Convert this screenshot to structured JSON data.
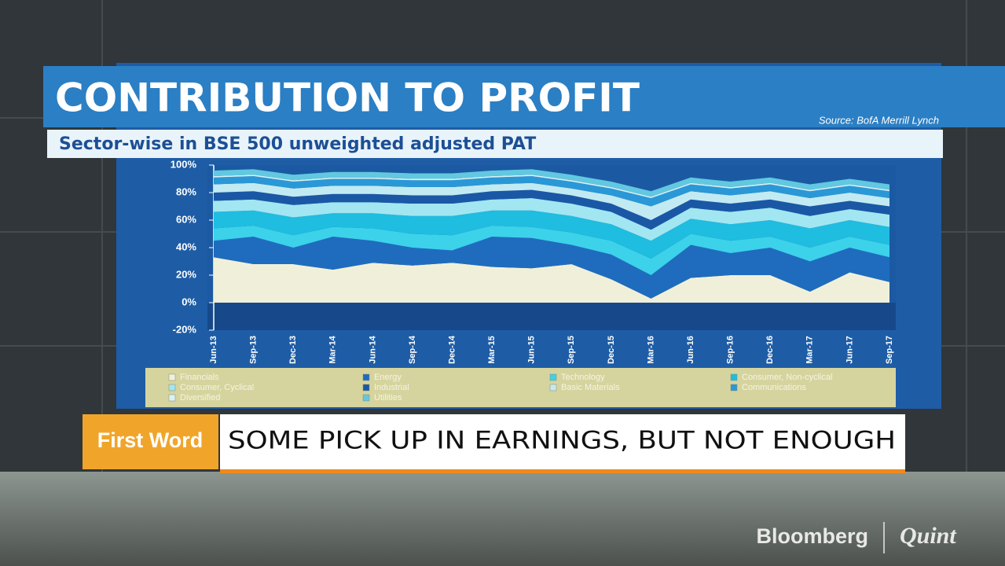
{
  "chart_data": {
    "type": "area",
    "stacked": true,
    "title": "CONTRIBUTION TO PROFIT",
    "subtitle": "Sector-wise in BSE 500 unweighted adjusted PAT",
    "source": "Source: BofA Merrill Lynch",
    "categories": [
      "Jun-13",
      "Sep-13",
      "Dec-13",
      "Mar-14",
      "Jun-14",
      "Sep-14",
      "Dec-14",
      "Mar-15",
      "Jun-15",
      "Sep-15",
      "Dec-15",
      "Mar-16",
      "Jun-16",
      "Sep-16",
      "Dec-16",
      "Mar-17",
      "Jun-17",
      "Sep-17"
    ],
    "series": [
      {
        "name": "Financials",
        "color": "#f0f0da",
        "values": [
          33,
          28,
          28,
          24,
          29,
          27,
          29,
          26,
          25,
          28,
          17,
          3,
          18,
          20,
          20,
          8,
          22,
          15
        ]
      },
      {
        "name": "Energy",
        "color": "#1f6cbf",
        "values": [
          12,
          20,
          12,
          24,
          16,
          13,
          9,
          22,
          22,
          14,
          18,
          17,
          24,
          16,
          20,
          22,
          18,
          18
        ]
      },
      {
        "name": "Technology",
        "color": "#3cd2ea",
        "values": [
          9,
          8,
          9,
          7,
          9,
          10,
          11,
          8,
          8,
          9,
          10,
          12,
          8,
          9,
          8,
          10,
          8,
          9
        ]
      },
      {
        "name": "Consumer, Non-cyclical",
        "color": "#1fbde0",
        "values": [
          12,
          11,
          13,
          10,
          11,
          13,
          14,
          11,
          12,
          12,
          12,
          13,
          11,
          12,
          12,
          14,
          12,
          13
        ]
      },
      {
        "name": "Consumer, Cyclical",
        "color": "#a2e6f2",
        "values": [
          8,
          8,
          9,
          8,
          8,
          9,
          9,
          8,
          9,
          9,
          9,
          8,
          8,
          9,
          9,
          9,
          8,
          9
        ]
      },
      {
        "name": "Industrial",
        "color": "#1a58a6",
        "values": [
          6,
          6,
          6,
          6,
          6,
          6,
          6,
          6,
          6,
          6,
          6,
          7,
          6,
          6,
          6,
          7,
          6,
          6
        ]
      },
      {
        "name": "Basic Materials",
        "color": "#c2eaf2",
        "values": [
          6,
          6,
          6,
          6,
          6,
          6,
          6,
          5,
          5,
          5,
          6,
          10,
          6,
          6,
          6,
          6,
          6,
          6
        ]
      },
      {
        "name": "Communications",
        "color": "#2a98d6",
        "values": [
          5,
          5,
          5,
          5,
          5,
          5,
          5,
          5,
          5,
          5,
          5,
          6,
          5,
          5,
          5,
          5,
          5,
          5
        ]
      },
      {
        "name": "Diversified",
        "color": "#d8f2f6",
        "values": [
          1,
          1,
          1,
          1,
          1,
          1,
          1,
          1,
          1,
          1,
          1,
          1,
          1,
          1,
          1,
          1,
          1,
          1
        ]
      },
      {
        "name": "Utilities",
        "color": "#62c8e0",
        "values": [
          4,
          4,
          4,
          4,
          4,
          4,
          4,
          4,
          4,
          4,
          4,
          4,
          4,
          4,
          4,
          4,
          4,
          4
        ]
      }
    ],
    "ylim": [
      -20,
      100
    ],
    "yticks": [
      {
        "value": 100,
        "label": "100%"
      },
      {
        "value": 80,
        "label": "80%"
      },
      {
        "value": 60,
        "label": "60%"
      },
      {
        "value": 40,
        "label": "40%"
      },
      {
        "value": 20,
        "label": "20%"
      },
      {
        "value": 0,
        "label": "0%"
      },
      {
        "value": -20,
        "label": "-20%"
      }
    ],
    "grid": false,
    "legend": "bottom"
  },
  "lower_third": {
    "tag": "First Word",
    "headline": "SOME PICK UP IN EARNINGS, BUT NOT ENOUGH"
  },
  "logo": {
    "brand": "Bloomberg",
    "partner": "Quint"
  }
}
